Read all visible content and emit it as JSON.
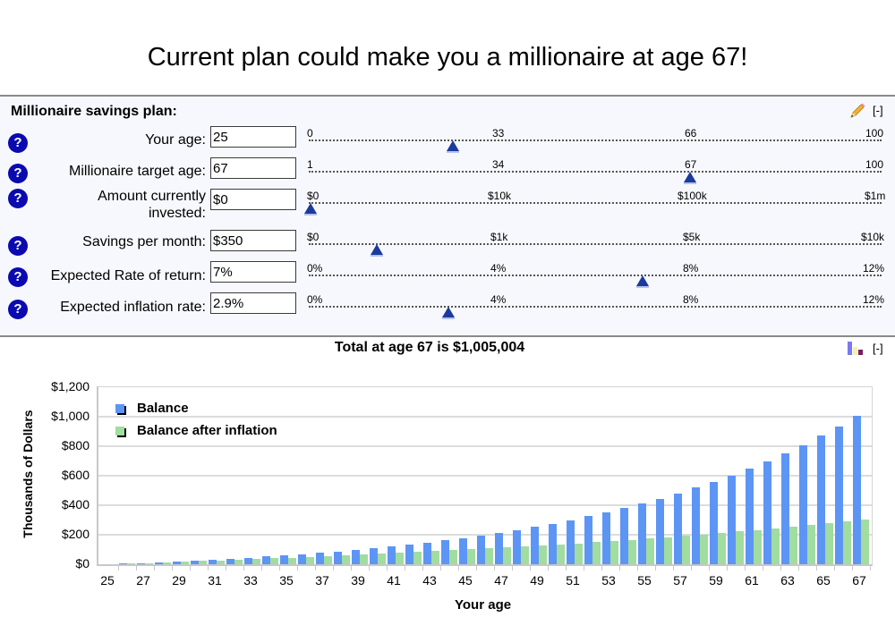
{
  "header": {
    "title": "Current plan could make you a millionaire at age 67!"
  },
  "panel": {
    "title": "Millionaire savings plan:",
    "edit_icon": "pencil-icon",
    "collapse_label": "[-]"
  },
  "fields": [
    {
      "label": "Your age:",
      "label_line2": "",
      "value": "25",
      "ticks": [
        "0",
        "33",
        "66",
        "100"
      ],
      "thumb_pct": 25.2
    },
    {
      "label": "Millionaire target age:",
      "label_line2": "",
      "value": "67",
      "ticks": [
        "1",
        "34",
        "67",
        "100"
      ],
      "thumb_pct": 66.6
    },
    {
      "label": "Amount currently",
      "label_line2": "invested:",
      "value": "$0",
      "ticks": [
        "$0",
        "$10k",
        "$100k",
        "$1m"
      ],
      "thumb_pct": 0.3
    },
    {
      "label": "Savings per month:",
      "label_line2": "",
      "value": "$350",
      "ticks": [
        "$0",
        "$1k",
        "$5k",
        "$10k"
      ],
      "thumb_pct": 11.9
    },
    {
      "label": "Expected Rate of return:",
      "label_line2": "",
      "value": "7%",
      "ticks": [
        "0%",
        "4%",
        "8%",
        "12%"
      ],
      "thumb_pct": 58.3
    },
    {
      "label": "Expected inflation rate:",
      "label_line2": "",
      "value": "2.9%",
      "ticks": [
        "0%",
        "4%",
        "8%",
        "12%"
      ],
      "thumb_pct": 24.4
    }
  ],
  "help_icon_label": "?",
  "summary": {
    "text": "Total at age 67 is $1,005,004",
    "chart_icon": "bar-chart-icon",
    "collapse_label": "[-]"
  },
  "colors": {
    "balance": "#5d95f5",
    "balance_after_inflation": "#a1dca0",
    "help_icon": "#0a0ab0",
    "slider_thumb": "#1b3b9c",
    "panel_bg": "#f7f8fd"
  },
  "chart_data": {
    "type": "bar",
    "title": "",
    "xlabel": "Your age",
    "ylabel": "Thousands of Dollars",
    "ylim": [
      0,
      1200
    ],
    "yticks": [
      "$0",
      "$200",
      "$400",
      "$600",
      "$800",
      "$1,000",
      "$1,200"
    ],
    "ytick_values": [
      0,
      200,
      400,
      600,
      800,
      1000,
      1200
    ],
    "xtick_labels": [
      "25",
      "27",
      "29",
      "31",
      "33",
      "35",
      "37",
      "39",
      "41",
      "43",
      "45",
      "47",
      "49",
      "51",
      "53",
      "55",
      "57",
      "59",
      "61",
      "63",
      "65",
      "67"
    ],
    "grid": true,
    "legend_position": "top-left inside",
    "categories": [
      25,
      26,
      27,
      28,
      29,
      30,
      31,
      32,
      33,
      34,
      35,
      36,
      37,
      38,
      39,
      40,
      41,
      42,
      43,
      44,
      45,
      46,
      47,
      48,
      49,
      50,
      51,
      52,
      53,
      54,
      55,
      56,
      57,
      58,
      59,
      60,
      61,
      62,
      63,
      64,
      65,
      66,
      67
    ],
    "series": [
      {
        "name": "Balance",
        "color": "#5d95f5",
        "values": [
          0,
          4.4,
          9.0,
          14.0,
          19.4,
          25.1,
          31.2,
          37.7,
          44.7,
          52.2,
          60.2,
          68.8,
          78.0,
          87.8,
          98.3,
          109.5,
          121.5,
          134.4,
          148.2,
          162.9,
          178.6,
          195.5,
          213.6,
          232.9,
          253.5,
          275.6,
          299.3,
          324.6,
          351.7,
          380.6,
          411.6,
          444.8,
          480.3,
          518.3,
          558.9,
          602.4,
          648.9,
          698.7,
          752.0,
          808.9,
          869.9,
          935.2,
          1005.0
        ]
      },
      {
        "name": "Balance after inflation",
        "color": "#a1dca0",
        "values": [
          0,
          4.2,
          8.5,
          12.9,
          17.3,
          21.7,
          26.3,
          30.9,
          35.6,
          40.4,
          45.2,
          50.2,
          55.3,
          60.5,
          65.9,
          71.3,
          76.9,
          82.7,
          88.6,
          94.6,
          100.9,
          107.3,
          113.9,
          120.7,
          127.7,
          134.9,
          142.3,
          150.0,
          157.9,
          166.1,
          174.6,
          183.3,
          192.4,
          201.8,
          211.5,
          221.5,
          231.9,
          242.6,
          253.7,
          265.3,
          277.2,
          289.6,
          302.5
        ]
      }
    ]
  }
}
